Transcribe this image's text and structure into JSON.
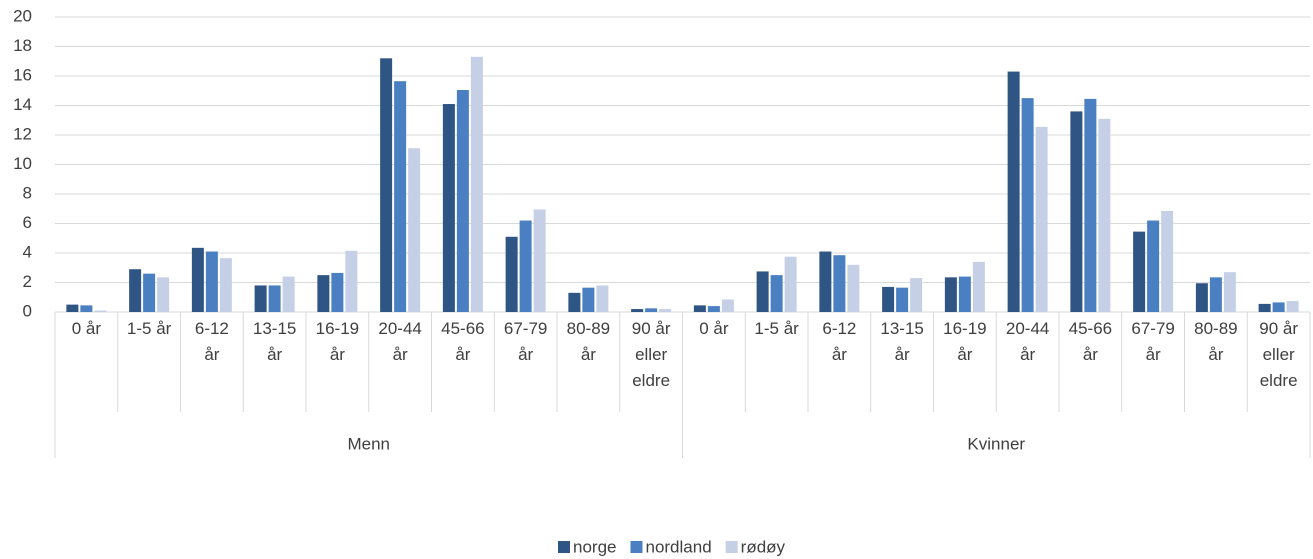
{
  "chart_data": {
    "type": "bar",
    "groups": [
      "Menn",
      "Kvinner"
    ],
    "categories": [
      "0 år",
      "1-5 år",
      "6-12 år",
      "13-15 år",
      "16-19 år",
      "20-44 år",
      "45-66 år",
      "67-79 år",
      "80-89 år",
      "90 år eller eldre",
      "0 år",
      "1-5 år",
      "6-12 år",
      "13-15 år",
      "16-19 år",
      "20-44 år",
      "45-66 år",
      "67-79 år",
      "80-89 år",
      "90 år eller eldre"
    ],
    "series": [
      {
        "name": "norge",
        "color": "#2f5584",
        "values": [
          0.5,
          2.9,
          4.35,
          1.8,
          2.5,
          17.2,
          14.1,
          5.1,
          1.3,
          0.2,
          0.45,
          2.75,
          4.1,
          1.7,
          2.35,
          16.3,
          13.6,
          5.45,
          1.95,
          0.55
        ]
      },
      {
        "name": "nordland",
        "color": "#4a7fc1",
        "values": [
          0.45,
          2.6,
          4.1,
          1.8,
          2.65,
          15.65,
          15.05,
          6.2,
          1.65,
          0.25,
          0.4,
          2.5,
          3.85,
          1.65,
          2.4,
          14.5,
          14.45,
          6.2,
          2.35,
          0.65
        ]
      },
      {
        "name": "rødøy",
        "color": "#c5d0e6",
        "values": [
          0.1,
          2.35,
          3.65,
          2.4,
          4.15,
          11.1,
          17.3,
          6.95,
          1.8,
          0.2,
          0.85,
          3.75,
          3.2,
          2.3,
          3.4,
          12.55,
          13.1,
          6.85,
          2.7,
          0.75
        ]
      }
    ],
    "ylim": [
      0,
      20
    ],
    "yticks": [
      0,
      2,
      4,
      6,
      8,
      10,
      12,
      14,
      16,
      18,
      20
    ],
    "grid": true,
    "legend": "bottom"
  }
}
